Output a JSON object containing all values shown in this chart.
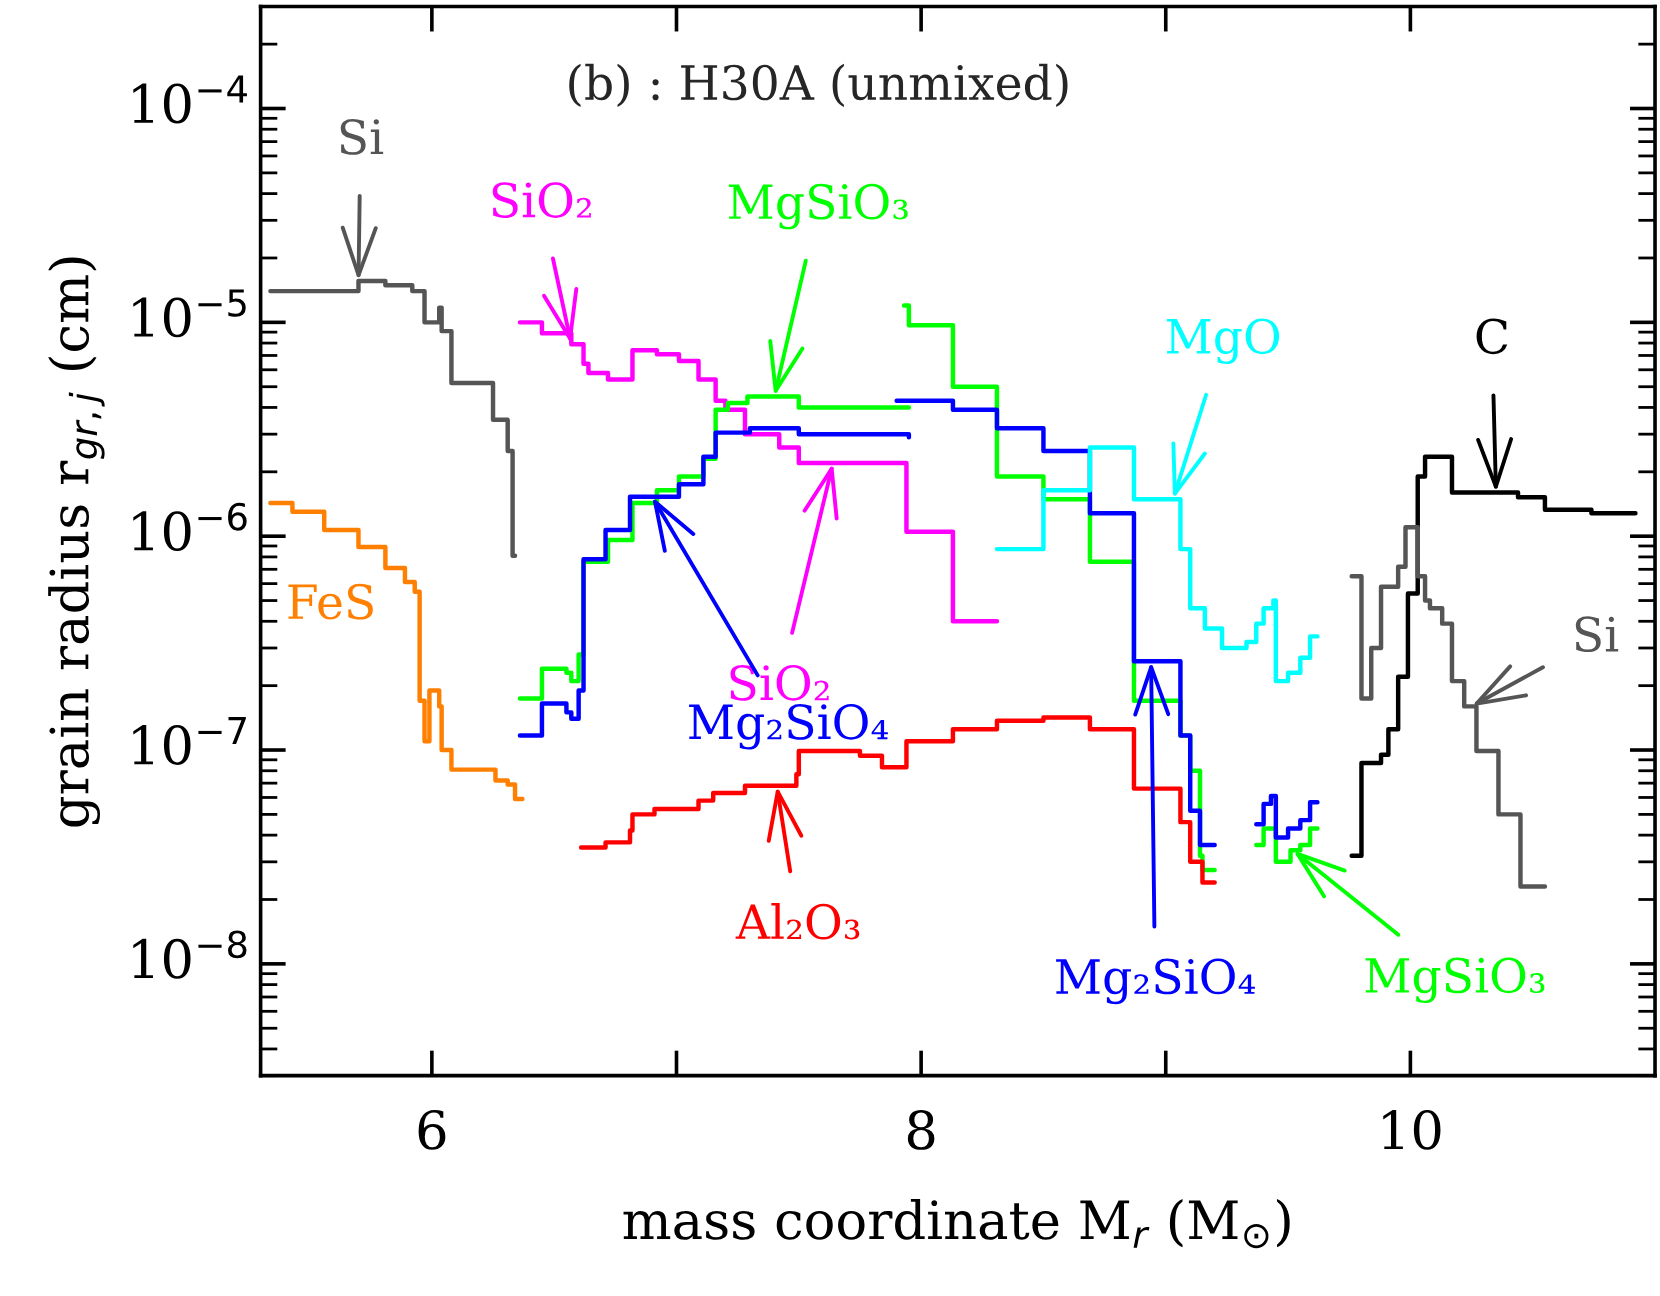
{
  "chart_data": {
    "type": "step",
    "title": "(b) : H30A (unmixed)",
    "xlabel": "mass coordinate M$_{r}$ (M$_{⊙}$)",
    "ylabel": "grain radius r$_{gr,j}$ (cm)",
    "log": "y",
    "grid": false,
    "xlim": [
      5.3,
      11.0
    ],
    "xticks": [
      6,
      {
        "value": 7,
        "label": null
      },
      8,
      {
        "value": 9,
        "label": null
      },
      10
    ],
    "ylim": [
      3e-09,
      0.0003
    ],
    "yticks": [
      {
        "value": 1e-08,
        "label": "10$^{−8}$"
      },
      {
        "value": 1e-07,
        "label": "10$^{−7}$"
      },
      {
        "value": 1e-06,
        "label": "10$^{−6}$"
      },
      {
        "value": 1e-05,
        "label": "10$^{−5}$"
      },
      {
        "value": 0.0001,
        "label": "10$^{−4}$"
      }
    ],
    "series": [
      {
        "color": "#555555",
        "x": [
          5.34,
          5.7,
          5.81,
          5.92,
          5.97,
          6.03,
          6.04,
          6.08,
          6.25,
          6.31,
          6.33,
          6.34
        ],
        "values": [
          1.4e-05,
          1.56e-05,
          1.49e-05,
          1.4e-05,
          1e-05,
          1.17e-05,
          9.1e-06,
          5.2e-06,
          3.5e-06,
          2.5e-06,
          8.1e-07,
          8.1e-07
        ]
      },
      {
        "color": "#ff7f00",
        "x": [
          5.34,
          5.43,
          5.56,
          5.7,
          5.81,
          5.89,
          5.93,
          5.95,
          5.97,
          5.99,
          6.03,
          6.04,
          6.08,
          6.26,
          6.31,
          6.34,
          6.37
        ],
        "values": [
          1.43e-06,
          1.3e-06,
          1.07e-06,
          8.9e-07,
          7.1e-07,
          6.1e-07,
          5.5e-07,
          1.7e-07,
          1.1e-07,
          1.9e-07,
          1.6e-07,
          1e-07,
          8.1e-08,
          7.2e-08,
          6.9e-08,
          5.9e-08,
          5.9e-08
        ]
      },
      {
        "color": "#ff00ff",
        "x": [
          6.36,
          6.45,
          6.57,
          6.62,
          6.64,
          6.72,
          6.82,
          6.92,
          7.01,
          7.09,
          7.16,
          7.2,
          7.28,
          7.42,
          7.5,
          7.94,
          8.13,
          8.31
        ],
        "values": [
          1e-05,
          8.9e-06,
          7.9e-06,
          6.4e-06,
          5.8e-06,
          5.4e-06,
          7.4e-06,
          7.1e-06,
          6.6e-06,
          5.4e-06,
          4.3e-06,
          3.9e-06,
          3e-06,
          2.6e-06,
          2.2e-06,
          1.05e-06,
          4e-07,
          4e-07
        ]
      },
      {
        "color": "#00ff00",
        "x": [
          6.36,
          6.45,
          6.55,
          6.57,
          6.6,
          6.62,
          6.72,
          6.82,
          6.92,
          7.01,
          7.11,
          7.16,
          7.21,
          7.29,
          7.5,
          7.95
        ],
        "values": [
          1.74e-07,
          2.4e-07,
          2.3e-07,
          2.1e-07,
          2.8e-07,
          7.6e-07,
          9.6e-07,
          1.43e-06,
          1.64e-06,
          1.9e-06,
          2.3e-06,
          3.9e-06,
          4.2e-06,
          4.5e-06,
          4e-06,
          4e-06
        ]
      },
      {
        "color": "#00ff00",
        "x": [
          7.93,
          7.95,
          8.13,
          8.31,
          8.5,
          8.69,
          8.87,
          9.06,
          9.1,
          9.14,
          9.15,
          9.2
        ],
        "values": [
          1.2e-05,
          9.7e-06,
          5e-06,
          1.9e-06,
          1.49e-06,
          7.6e-07,
          1.7e-07,
          1.17e-07,
          8e-08,
          3.2e-08,
          2.75e-08,
          2.75e-08
        ]
      },
      {
        "color": "#00ff00",
        "x": [
          9.37,
          9.4,
          9.45,
          9.51,
          9.55,
          9.59,
          9.62
        ],
        "values": [
          3.6e-08,
          4.3e-08,
          3e-08,
          3.4e-08,
          3.6e-08,
          4.3e-08,
          4.3e-08
        ]
      },
      {
        "color": "#0000ff",
        "x": [
          6.36,
          6.45,
          6.55,
          6.57,
          6.6,
          6.62,
          6.71,
          6.81,
          7.01,
          7.11,
          7.16,
          7.3,
          7.5,
          7.95
        ],
        "values": [
          1.17e-07,
          1.65e-07,
          1.5e-07,
          1.4e-07,
          1.9e-07,
          7.8e-07,
          1.07e-06,
          1.53e-06,
          1.75e-06,
          2.35e-06,
          3.05e-06,
          3.2e-06,
          3e-06,
          2.9e-06
        ]
      },
      {
        "color": "#0000ff",
        "x": [
          7.9,
          8.13,
          8.31,
          8.5,
          8.69,
          8.87,
          9.06,
          9.1,
          9.14,
          9.2
        ],
        "values": [
          4.3e-06,
          3.9e-06,
          3.2e-06,
          2.5e-06,
          1.28e-06,
          2.6e-07,
          1.17e-07,
          5.2e-08,
          3.6e-08,
          3.6e-08
        ]
      },
      {
        "color": "#0000ff",
        "x": [
          9.37,
          9.4,
          9.43,
          9.45,
          9.5,
          9.55,
          9.59,
          9.62
        ],
        "values": [
          4.5e-08,
          5.6e-08,
          6.1e-08,
          3.9e-08,
          4.3e-08,
          4.7e-08,
          5.7e-08,
          5.7e-08
        ]
      },
      {
        "color": "#00ffff",
        "x": [
          8.31,
          8.5,
          8.69,
          8.87,
          9.06,
          9.1,
          9.16,
          9.23,
          9.33,
          9.37,
          9.4,
          9.44,
          9.45,
          9.5,
          9.55,
          9.59,
          9.62
        ],
        "values": [
          8.7e-07,
          1.64e-06,
          2.6e-06,
          1.49e-06,
          8.7e-07,
          4.6e-07,
          3.7e-07,
          3e-07,
          3.2e-07,
          3.9e-07,
          4.6e-07,
          5e-07,
          2.1e-07,
          2.3e-07,
          2.7e-07,
          3.4e-07,
          3.4e-07
        ]
      },
      {
        "color": "#ff0000",
        "x": [
          6.61,
          6.71,
          6.81,
          6.82,
          6.91,
          7.09,
          7.15,
          7.28,
          7.49,
          7.5,
          7.75,
          7.84,
          7.94,
          8.13,
          8.31,
          8.5,
          8.69,
          8.87,
          9.06,
          9.1,
          9.15,
          9.2
        ],
        "values": [
          3.5e-08,
          3.7e-08,
          4.2e-08,
          5e-08,
          5.3e-08,
          5.8e-08,
          6.3e-08,
          6.8e-08,
          7.7e-08,
          9.9e-08,
          9.4e-08,
          8.3e-08,
          1.1e-07,
          1.25e-07,
          1.37e-07,
          1.42e-07,
          1.25e-07,
          6.6e-08,
          4.6e-08,
          3e-08,
          2.4e-08,
          2.4e-08
        ]
      },
      {
        "color": "#000000",
        "x": [
          9.76,
          9.8,
          9.88,
          9.91,
          9.95,
          9.99,
          10.03,
          10.06,
          10.17,
          10.44,
          10.55,
          10.74,
          10.92
        ],
        "values": [
          3.2e-08,
          8.7e-08,
          9.5e-08,
          1.25e-07,
          2.2e-07,
          5.4e-07,
          1.9e-06,
          2.35e-06,
          1.6e-06,
          1.52e-06,
          1.33e-06,
          1.28e-06,
          1.28e-06
        ]
      },
      {
        "color": "#555555",
        "x": [
          9.76,
          9.8,
          9.84,
          9.88,
          9.95,
          9.98,
          10.03,
          10.06,
          10.08,
          10.13,
          10.17,
          10.22,
          10.27,
          10.36,
          10.45,
          10.55
        ],
        "values": [
          6.5e-07,
          1.74e-07,
          3e-07,
          5.8e-07,
          7.2e-07,
          1.1e-06,
          6.5e-07,
          5e-07,
          4.6e-07,
          3.9e-07,
          2.1e-07,
          1.6e-07,
          9.9e-08,
          5e-08,
          2.3e-08,
          2.3e-08
        ]
      }
    ],
    "annotations": [
      {
        "text": "Si",
        "x": 5.7,
        "y": 1.56e-05
      },
      {
        "text": "SiO₂",
        "x": 6.57,
        "y": 7.9e-06
      },
      {
        "text": "MgSiO₃",
        "x": 7.4,
        "y": 4.5e-06
      },
      {
        "text": "MgO",
        "x": 9.03,
        "y": 1.49e-06
      },
      {
        "text": "C",
        "x": 10.35,
        "y": 1.6e-06
      },
      {
        "text": "FeS",
        "x": 5.4,
        "y": 1.3e-06
      },
      {
        "text": "SiO₂",
        "x": 7.64,
        "y": 2.2e-06
      },
      {
        "text": "Mg₂SiO₄",
        "x": 6.9,
        "y": 1.53e-06
      },
      {
        "text": "Al₂O₃",
        "x": 7.41,
        "y": 6.8e-08
      },
      {
        "text": "Mg₂SiO₄",
        "x": 8.94,
        "y": 2.6e-07
      },
      {
        "text": "MgSiO₃",
        "x": 9.52,
        "y": 3.4e-08
      },
      {
        "text": "Si",
        "x": 10.25,
        "y": 1.6e-07
      }
    ]
  }
}
